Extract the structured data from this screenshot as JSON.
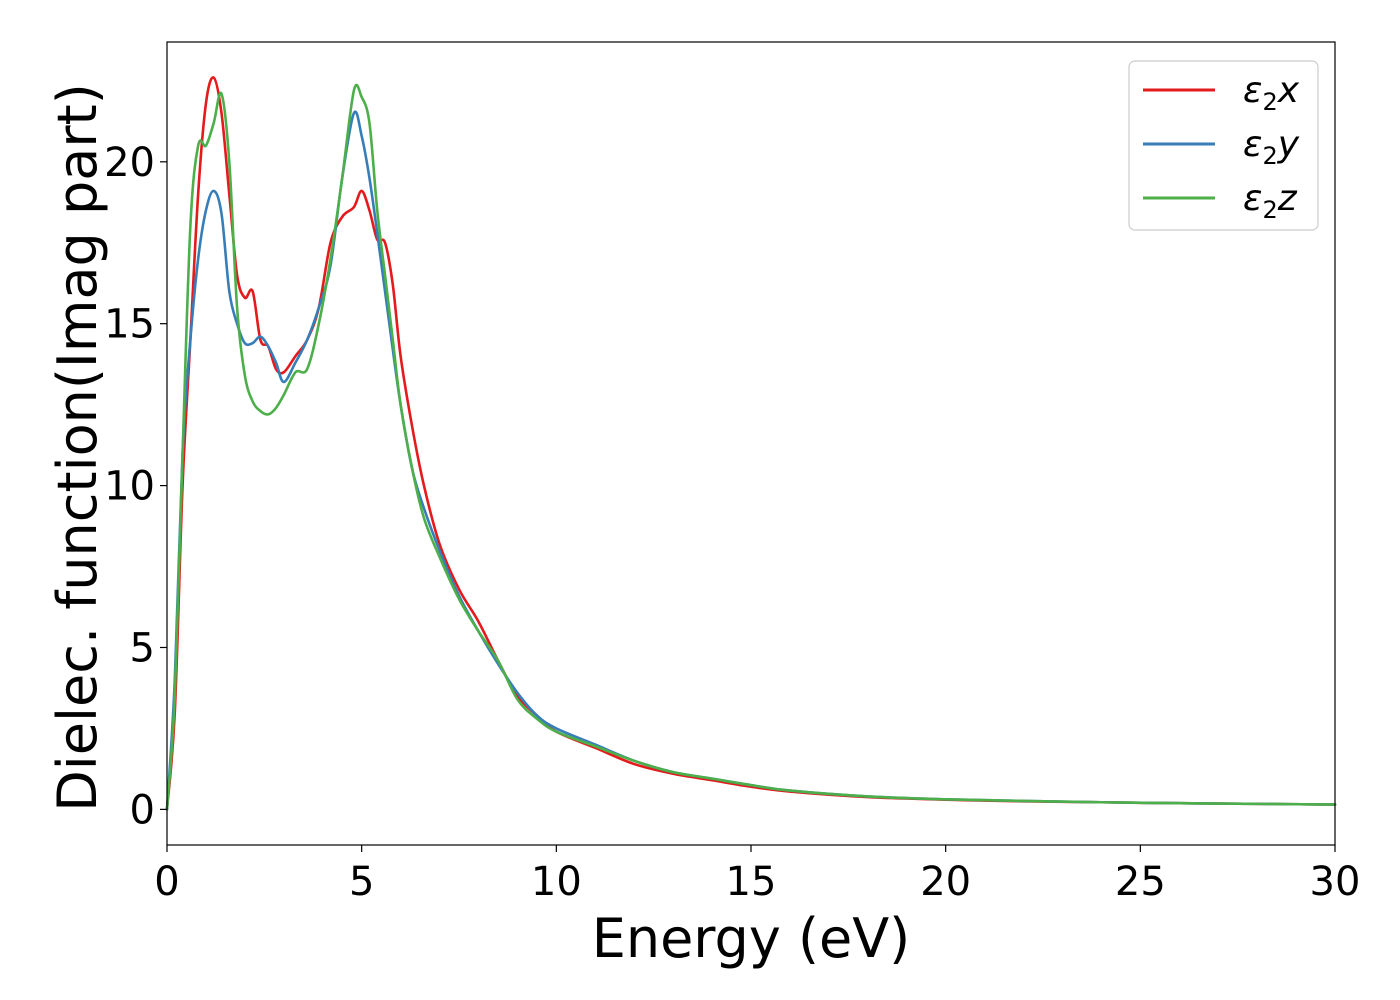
{
  "chart_data": {
    "type": "line",
    "title": "",
    "xlabel": "Energy (eV)",
    "ylabel": "Dielec. function(Imag part)",
    "xlim": [
      0,
      30
    ],
    "ylim": [
      -1.1,
      23.7
    ],
    "xticks": [
      0,
      5,
      10,
      15,
      20,
      25,
      30
    ],
    "yticks": [
      0,
      5,
      10,
      15,
      20
    ],
    "grid": false,
    "legend_position": "top-right",
    "series": [
      {
        "name": "ε2x",
        "legend_base": "ε",
        "legend_sub": "2",
        "legend_tail": "x",
        "color": "#e41a1c",
        "x": [
          0,
          0.2,
          0.4,
          0.6,
          0.8,
          1.0,
          1.2,
          1.4,
          1.6,
          1.8,
          2.0,
          2.2,
          2.4,
          2.6,
          2.8,
          3.0,
          3.3,
          3.6,
          3.9,
          4.2,
          4.5,
          4.8,
          5.0,
          5.2,
          5.4,
          5.6,
          5.8,
          6.0,
          6.3,
          6.6,
          7.0,
          7.5,
          8.0,
          8.5,
          9.0,
          9.5,
          10.0,
          11.0,
          12.0,
          13.0,
          14.0,
          15.0,
          16.0,
          18.0,
          20.0,
          22.0,
          24.0,
          26.0,
          28.0,
          30.0
        ],
        "y": [
          0,
          3,
          10,
          14.5,
          19,
          21.8,
          22.6,
          21.5,
          19,
          16.5,
          15.8,
          16,
          14.5,
          14.3,
          13.6,
          13.5,
          14,
          14.5,
          15.5,
          17.5,
          18.3,
          18.6,
          19.1,
          18.5,
          17.6,
          17.5,
          16.2,
          14,
          11.8,
          10,
          8.2,
          6.8,
          5.8,
          4.6,
          3.5,
          2.9,
          2.4,
          1.9,
          1.4,
          1.1,
          0.9,
          0.7,
          0.55,
          0.38,
          0.3,
          0.25,
          0.22,
          0.19,
          0.17,
          0.15
        ]
      },
      {
        "name": "ε2y",
        "legend_base": "ε",
        "legend_sub": "2",
        "legend_tail": "y",
        "color": "#377eb8",
        "x": [
          0,
          0.2,
          0.4,
          0.6,
          0.8,
          1.0,
          1.2,
          1.4,
          1.6,
          1.8,
          2.0,
          2.2,
          2.4,
          2.6,
          2.8,
          3.0,
          3.3,
          3.6,
          3.9,
          4.2,
          4.5,
          4.8,
          5.0,
          5.2,
          5.4,
          5.6,
          5.8,
          6.0,
          6.3,
          6.6,
          7.0,
          7.5,
          8.0,
          8.5,
          9.0,
          9.5,
          10.0,
          11.0,
          12.0,
          13.0,
          14.0,
          15.0,
          16.0,
          18.0,
          20.0,
          22.0,
          24.0,
          26.0,
          28.0,
          30.0
        ],
        "y": [
          0,
          4,
          11,
          14.5,
          17,
          18.5,
          19.1,
          18.4,
          16,
          15,
          14.4,
          14.4,
          14.6,
          14.3,
          13.8,
          13.2,
          13.8,
          14.5,
          15.5,
          16.8,
          19.5,
          21.5,
          20.8,
          19.5,
          17.8,
          16,
          14.2,
          12.5,
          10.5,
          9.3,
          8.0,
          6.6,
          5.5,
          4.5,
          3.6,
          2.9,
          2.5,
          2.0,
          1.5,
          1.15,
          0.95,
          0.75,
          0.58,
          0.4,
          0.31,
          0.26,
          0.22,
          0.19,
          0.17,
          0.15
        ]
      },
      {
        "name": "ε2z",
        "legend_base": "ε",
        "legend_sub": "2",
        "legend_tail": "z",
        "color": "#4daf4a",
        "x": [
          0,
          0.2,
          0.4,
          0.6,
          0.8,
          1.0,
          1.2,
          1.4,
          1.6,
          1.8,
          2.0,
          2.2,
          2.4,
          2.6,
          2.8,
          3.0,
          3.3,
          3.6,
          3.9,
          4.2,
          4.5,
          4.8,
          5.0,
          5.2,
          5.4,
          5.6,
          5.8,
          6.0,
          6.3,
          6.6,
          7.0,
          7.5,
          8.0,
          8.5,
          9.0,
          9.5,
          10.0,
          11.0,
          12.0,
          13.0,
          14.0,
          15.0,
          16.0,
          18.0,
          20.0,
          22.0,
          24.0,
          26.0,
          28.0,
          30.0
        ],
        "y": [
          0,
          3.5,
          11,
          18,
          20.5,
          20.5,
          21.2,
          22.1,
          20,
          15.5,
          13.4,
          12.6,
          12.3,
          12.2,
          12.4,
          12.8,
          13.5,
          13.6,
          15,
          17,
          19.5,
          22.2,
          22,
          21.2,
          18.5,
          16.5,
          14.5,
          12.5,
          10.5,
          9.0,
          7.8,
          6.5,
          5.5,
          4.6,
          3.4,
          2.8,
          2.4,
          1.95,
          1.5,
          1.15,
          0.95,
          0.75,
          0.58,
          0.4,
          0.31,
          0.26,
          0.22,
          0.19,
          0.17,
          0.15
        ]
      }
    ]
  }
}
